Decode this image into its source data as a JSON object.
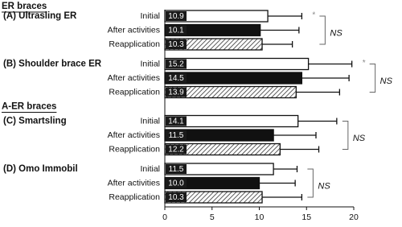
{
  "chart_data": {
    "type": "bar",
    "orientation": "horizontal",
    "bar_fills": [
      "#ffffff",
      "#111111",
      "hatched"
    ],
    "xlim": [
      0,
      20
    ],
    "xticks": [
      0,
      5,
      10,
      15,
      20
    ],
    "sections": [
      {
        "title": "ER braces",
        "groups": [
          {
            "name": "(A) Ultrasling ER",
            "categories": [
              "Initial",
              "After activities",
              "Reapplication"
            ],
            "values": [
              10.9,
              10.1,
              10.3
            ],
            "value_labels": [
              "10.9",
              "10.1",
              "10.3"
            ],
            "errors": [
              3.6,
              4.1,
              3.2
            ],
            "marker": "*",
            "bracket_label": "NS"
          },
          {
            "name": "(B) Shoulder brace ER",
            "categories": [
              "Initial",
              "After activities",
              "Reapplication"
            ],
            "values": [
              15.2,
              14.5,
              13.9
            ],
            "value_labels": [
              "15.2",
              "14.5",
              "13.9"
            ],
            "errors": [
              4.6,
              5.0,
              4.6
            ],
            "marker": "*",
            "bracket_label": "NS"
          }
        ]
      },
      {
        "title": "A-ER braces",
        "groups": [
          {
            "name": "(C) Smartsling",
            "categories": [
              "Initial",
              "After activities",
              "Reapplication"
            ],
            "values": [
              14.1,
              11.5,
              12.2
            ],
            "value_labels": [
              "14.1",
              "11.5",
              "12.2"
            ],
            "errors": [
              4.1,
              4.5,
              4.1
            ],
            "bracket_label": "NS"
          },
          {
            "name": "(D) Omo Immobil",
            "categories": [
              "Initial",
              "After activities",
              "Reapplication"
            ],
            "values": [
              11.5,
              10.0,
              10.3
            ],
            "value_labels": [
              "11.5",
              "10.0",
              "10.3"
            ],
            "errors": [
              2.5,
              3.8,
              4.2
            ],
            "bracket_label": "NS"
          }
        ]
      }
    ]
  }
}
